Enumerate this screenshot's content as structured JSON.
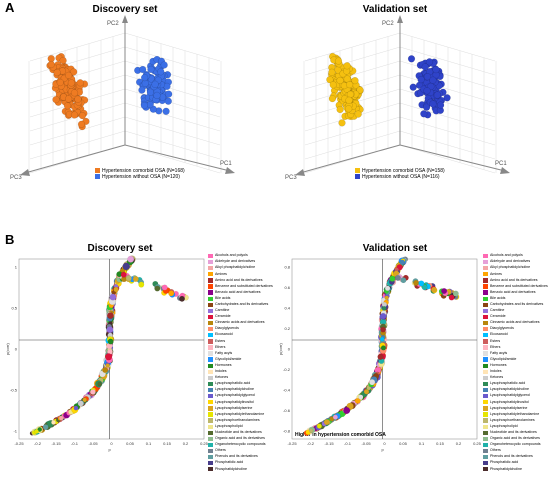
{
  "panel_a": {
    "letter": "A",
    "axes": {
      "x": "PC1",
      "y": "PC2",
      "z": "PC3"
    },
    "discovery": {
      "title": "Discovery set",
      "legend": [
        {
          "label": "Hypertension comorbid OSA  (N=168)",
          "color": "#ee7b22"
        },
        {
          "label": "Hypertension without OSA  (N=120)",
          "color": "#3b6fe6"
        }
      ]
    },
    "validation": {
      "title": "Validation set",
      "legend": [
        {
          "label": "Hypertension comorbid OSA  (N=158)",
          "color": "#f5c010"
        },
        {
          "label": "Hypertension without OSA  (N=116)",
          "color": "#2f43c9"
        }
      ]
    }
  },
  "panel_b": {
    "letter": "B",
    "discovery": {
      "title": "Discovery set",
      "xlabel": "p",
      "ylabel": "p(corr)",
      "x_ticks": [
        "-0.25",
        "-0.2",
        "-0.15",
        "-0.1",
        "-0.05",
        "0",
        "0.05",
        "0.1",
        "0.15",
        "0.2",
        "0.25"
      ],
      "y_ticks": [
        "1",
        "0.5",
        "0",
        "-0.5",
        "-1"
      ]
    },
    "validation": {
      "title": "Validation set",
      "xlabel": "p",
      "ylabel": "p(corr)",
      "note": "Higher in hypertension comorbid OSA",
      "x_ticks": [
        "-0.25",
        "-0.2",
        "-0.15",
        "-0.1",
        "-0.05",
        "0",
        "0.05",
        "0.1",
        "0.15",
        "0.2",
        "0.25"
      ],
      "y_ticks": [
        "0.8",
        "0.6",
        "0.4",
        "0.2",
        "0",
        "-0.2",
        "-0.4",
        "-0.6",
        "-0.8"
      ]
    },
    "classes": [
      {
        "label": "Alcohols and polyols",
        "color": "#ff69b4"
      },
      {
        "label": "Aldehyde and derivatives",
        "color": "#e6a0d8"
      },
      {
        "label": "Alkyl phosphatidylcholine",
        "color": "#f4a6a6"
      },
      {
        "label": "Amines",
        "color": "#ffa500"
      },
      {
        "label": "Amino acid and its derivatives",
        "color": "#a52a2a"
      },
      {
        "label": "Benzene and substituted derivatives",
        "color": "#ff4500"
      },
      {
        "label": "Benzoic acid and derivatives",
        "color": "#8b008b"
      },
      {
        "label": "Bile acids",
        "color": "#32cd32"
      },
      {
        "label": "Carbohydrates and its derivatives",
        "color": "#8b4513"
      },
      {
        "label": "Carnitine",
        "color": "#9370db"
      },
      {
        "label": "Ceramide",
        "color": "#dc143c"
      },
      {
        "label": "Cinnamic acids and derivatives",
        "color": "#b8860b"
      },
      {
        "label": "Diacylglycerols",
        "color": "#ff8c69"
      },
      {
        "label": "Eicosanoid",
        "color": "#00bfff"
      },
      {
        "label": "Esters",
        "color": "#cd5c5c"
      },
      {
        "label": "Ethers",
        "color": "#ffb6c1"
      },
      {
        "label": "Fatty acyls",
        "color": "#e0e0e0"
      },
      {
        "label": "Glycolipid/amide",
        "color": "#1e90ff"
      },
      {
        "label": "Hormones",
        "color": "#228b22"
      },
      {
        "label": "Indoles",
        "color": "#ffe4b5"
      },
      {
        "label": "Ketones",
        "color": "#cccccc"
      },
      {
        "label": "Lysophosphatidic acid",
        "color": "#2e8b57"
      },
      {
        "label": "Lysophosphatidylcholine",
        "color": "#4682b4"
      },
      {
        "label": "Lysophosphatidylglycerol",
        "color": "#6a5acd"
      },
      {
        "label": "Lysophosphatidylinositol",
        "color": "#ffd700"
      },
      {
        "label": "Lysophosphatidylserine",
        "color": "#daa520"
      },
      {
        "label": "Lysophosphatidylethanolamine",
        "color": "#e6e600"
      },
      {
        "label": "Lysophosphoethanolamines",
        "color": "#bdb76b"
      },
      {
        "label": "Lysophospholipid",
        "color": "#f0e68c"
      },
      {
        "label": "Nucleotide and its derivatives",
        "color": "#556b2f"
      },
      {
        "label": "Organic acid and its derivatives",
        "color": "#8fbc8f"
      },
      {
        "label": "Organoheterocyclic compounds",
        "color": "#20b2aa"
      },
      {
        "label": "Others",
        "color": "#708090"
      },
      {
        "label": "Phenols and its derivatives",
        "color": "#5f9ea0"
      },
      {
        "label": "Phosphatidic acid",
        "color": "#483d8b"
      },
      {
        "label": "Phosphatidylcholine",
        "color": "#4b2c2c"
      }
    ]
  }
}
